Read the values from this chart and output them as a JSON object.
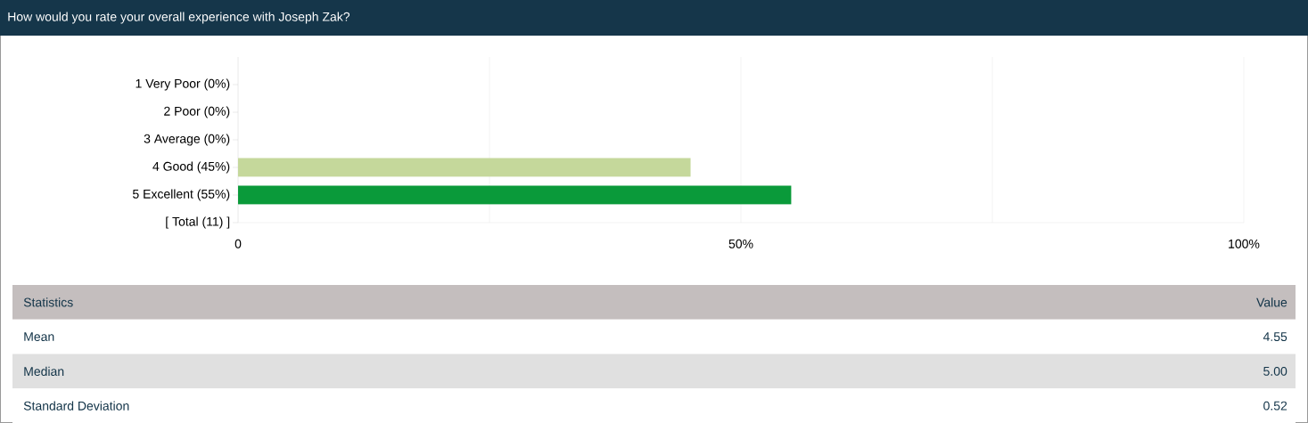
{
  "chart_data": {
    "type": "bar",
    "orientation": "horizontal",
    "title": "How would you rate your overall experience with Joseph Zak?",
    "categories": [
      "1 Very Poor (0%)",
      "2 Poor (0%)",
      "3 Average (0%)",
      "4 Good (45%)",
      "5 Excellent (55%)",
      "[ Total (11) ]"
    ],
    "values": [
      0,
      0,
      0,
      45,
      55,
      null
    ],
    "colors": [
      "#c5d89b",
      "#c5d89b",
      "#c5d89b",
      "#c5d89b",
      "#0a9a3a",
      "#0a9a3a"
    ],
    "xlim": [
      0,
      100
    ],
    "xticks": [
      0,
      {
        "value": 25,
        "label": null
      },
      {
        "value": 50,
        "label": "50%"
      },
      {
        "value": 75,
        "label": null
      },
      {
        "value": 100,
        "label": "100%"
      }
    ],
    "grid": "x",
    "annotations": [
      "Statistics",
      "Value",
      "Mean",
      "4.55",
      "Median",
      "5.00",
      "Standard Deviation",
      "0.52"
    ]
  }
}
